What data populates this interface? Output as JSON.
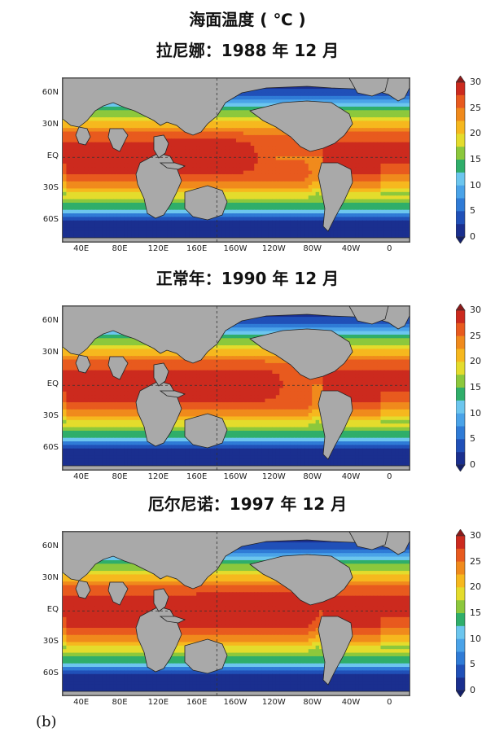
{
  "main_title": "海面温度 ( ℃ )",
  "panels": [
    {
      "title": "拉尼娜：1988 年 12 月",
      "state": "la_nina"
    },
    {
      "title": "正常年：1990 年 12 月",
      "state": "normal"
    },
    {
      "title": "厄尔尼诺：1997 年 12 月",
      "state": "el_nino"
    }
  ],
  "lat_labels": [
    "60N",
    "30N",
    "EQ",
    "30S",
    "60S"
  ],
  "lon_labels": [
    "40E",
    "80E",
    "120E",
    "160E",
    "160W",
    "120W",
    "80W",
    "40W",
    "0"
  ],
  "colorbar": {
    "min": 0,
    "max": 30,
    "step": 2.5,
    "tick_labels": [
      "30",
      "25",
      "20",
      "15",
      "10",
      "5",
      "0"
    ],
    "colors": [
      "#1a2f8f",
      "#2050b8",
      "#2f7bd6",
      "#4aa3e8",
      "#6cc6ee",
      "#2fae6a",
      "#8cc83c",
      "#e4dc2c",
      "#f6b81e",
      "#f08a1c",
      "#e85a1e",
      "#cc2a1e"
    ]
  },
  "land_color": "#a9a9a9",
  "panel_tag": "(b)"
}
